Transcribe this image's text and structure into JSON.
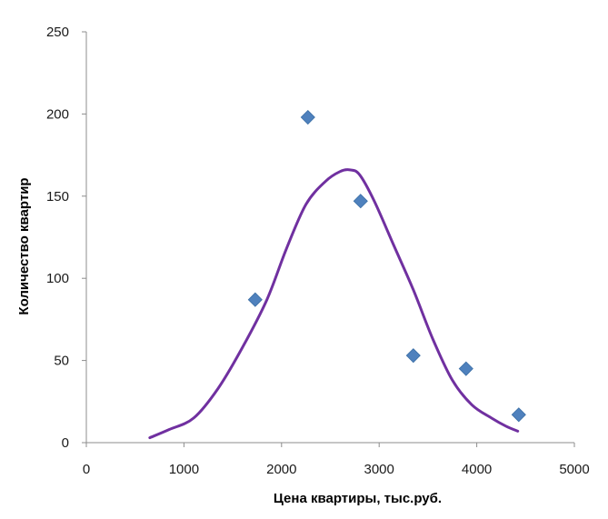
{
  "chart_data": {
    "type": "scatter",
    "xlabel": "Цена квартиры, тыс.руб.",
    "ylabel": "Количество квартир",
    "xlim": [
      0,
      5000
    ],
    "ylim": [
      0,
      250
    ],
    "x_ticks": [
      "0",
      "1000",
      "2000",
      "3000",
      "4000",
      "5000"
    ],
    "y_ticks": [
      "0",
      "50",
      "100",
      "150",
      "200",
      "250"
    ],
    "grid": false,
    "legend": "none",
    "series": [
      {
        "type": "scatter",
        "marker": "diamond",
        "color": "#4f81bd",
        "x": [
          1730,
          2270,
          2810,
          3350,
          3890,
          4430
        ],
        "y": [
          87,
          198,
          147,
          53,
          45,
          17
        ]
      },
      {
        "type": "line",
        "smooth": true,
        "color": "#7030a0",
        "x": [
          650,
          850,
          1100,
          1350,
          1600,
          1850,
          2050,
          2250,
          2450,
          2600,
          2700,
          2800,
          2950,
          3150,
          3350,
          3550,
          3750,
          3950,
          4150,
          4300,
          4420
        ],
        "y": [
          3,
          8,
          15,
          33,
          58,
          87,
          118,
          145,
          159,
          165,
          166,
          163,
          147,
          120,
          93,
          63,
          38,
          23,
          15,
          10,
          7
        ]
      }
    ]
  }
}
